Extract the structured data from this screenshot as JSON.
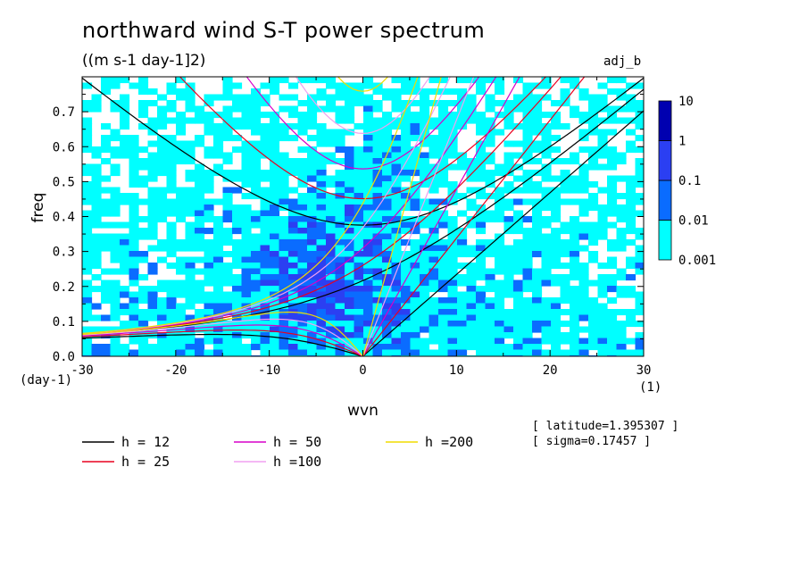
{
  "title": "northward wind S-T power spectrum",
  "units": "((m s-1 day-1]2)",
  "run_label": "adj_b",
  "info": {
    "latitude": "[ latitude=1.395307 ]",
    "sigma": "[ sigma=0.17457 ]"
  },
  "chart_data": {
    "type": "heatmap",
    "xlabel": "wvn",
    "ylabel": "freq",
    "x_unit_label": "(1)",
    "y_unit_label": "(day-1)",
    "xlim": [
      -30,
      30
    ],
    "ylim": [
      0,
      0.8
    ],
    "x_ticks": [
      -30,
      -20,
      -10,
      0,
      10,
      20,
      30
    ],
    "y_ticks": [
      0.0,
      0.1,
      0.2,
      0.3,
      0.4,
      0.5,
      0.6,
      0.7
    ],
    "x_tick_labels": [
      "-30",
      "-20",
      "-10",
      "0",
      "10",
      "20",
      "30"
    ],
    "y_tick_labels": [
      "0.0",
      "0.1",
      "0.2",
      "0.3",
      "0.4",
      "0.5",
      "0.6",
      "0.7"
    ],
    "colorbar": {
      "levels": [
        "0.001",
        "0.01",
        "0.1",
        "1",
        "10"
      ],
      "colors": [
        "#00ffff",
        "#0a6cff",
        "#2b3ff2",
        "#0000b0",
        "#3c0a9e"
      ]
    },
    "dispersion_curves": [
      {
        "label": "h = 12",
        "h": 12,
        "color": "#000000"
      },
      {
        "label": "h = 25",
        "h": 25,
        "color": "#e8001e"
      },
      {
        "label": "h = 50",
        "h": 50,
        "color": "#d700c8"
      },
      {
        "label": "h =100",
        "h": 100,
        "color": "#f0a0f0"
      },
      {
        "label": "h =200",
        "h": 200,
        "color": "#f0dc00"
      }
    ]
  }
}
